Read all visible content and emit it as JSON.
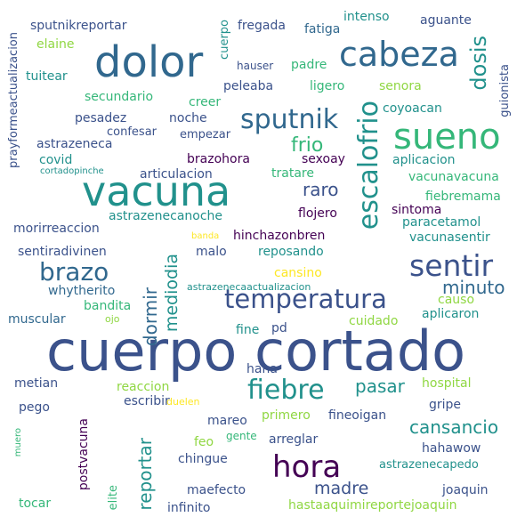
{
  "palette": {
    "background": "#ffffff",
    "dark_purple": "#440154",
    "indigo": "#3b528b",
    "navy": "#31688e",
    "teal": "#21918c",
    "green": "#35b779",
    "lime": "#90d743",
    "yellow": "#fde725"
  },
  "words": [
    {
      "text": "cuerpo cortado"
    },
    {
      "text": "vacuna"
    },
    {
      "text": "dolor"
    },
    {
      "text": "cabeza"
    },
    {
      "text": "sueno"
    },
    {
      "text": "sputnik"
    },
    {
      "text": "escalofrio"
    },
    {
      "text": "temperatura"
    },
    {
      "text": "sentir"
    },
    {
      "text": "hora"
    },
    {
      "text": "fiebre"
    },
    {
      "text": "brazo"
    },
    {
      "text": "dosis"
    },
    {
      "text": "cansancio"
    },
    {
      "text": "mediodia"
    },
    {
      "text": "minuto"
    },
    {
      "text": "dormir"
    },
    {
      "text": "reportar"
    },
    {
      "text": "frio"
    },
    {
      "text": "raro"
    },
    {
      "text": "madre"
    },
    {
      "text": "pasar"
    },
    {
      "text": "sputnikreportar"
    },
    {
      "text": "prayformeactualizacion"
    },
    {
      "text": "elaine"
    },
    {
      "text": "tuitear"
    },
    {
      "text": "secundario"
    },
    {
      "text": "pesadez"
    },
    {
      "text": "confesar"
    },
    {
      "text": "astrazeneca"
    },
    {
      "text": "covid"
    },
    {
      "text": "cortadopinche"
    },
    {
      "text": "morirreaccion"
    },
    {
      "text": "sentiradivinen"
    },
    {
      "text": "whytherito"
    },
    {
      "text": "bandita"
    },
    {
      "text": "muscular"
    },
    {
      "text": "ojo"
    },
    {
      "text": "metian"
    },
    {
      "text": "pego"
    },
    {
      "text": "muero"
    },
    {
      "text": "tocar"
    },
    {
      "text": "elite"
    },
    {
      "text": "postvacuna"
    },
    {
      "text": "fregada"
    },
    {
      "text": "cuerpo"
    },
    {
      "text": "hauser"
    },
    {
      "text": "padre"
    },
    {
      "text": "creer"
    },
    {
      "text": "peleaba"
    },
    {
      "text": "noche"
    },
    {
      "text": "empezar"
    },
    {
      "text": "brazohora"
    },
    {
      "text": "articulacion"
    },
    {
      "text": "astrazenecanoche"
    },
    {
      "text": "malo"
    },
    {
      "text": "banda"
    },
    {
      "text": "astrazenecaactualizacion"
    },
    {
      "text": "fatiga"
    },
    {
      "text": "intenso"
    },
    {
      "text": "aguante"
    },
    {
      "text": "guionista"
    },
    {
      "text": "ligero"
    },
    {
      "text": "senora"
    },
    {
      "text": "coyoacan"
    },
    {
      "text": "sexoay"
    },
    {
      "text": "tratare"
    },
    {
      "text": "aplicacion"
    },
    {
      "text": "vacunavacuna"
    },
    {
      "text": "fiebremama"
    },
    {
      "text": "sintoma"
    },
    {
      "text": "paracetamol"
    },
    {
      "text": "vacunasentir"
    },
    {
      "text": "flojero"
    },
    {
      "text": "hinchazonbren"
    },
    {
      "text": "reposando"
    },
    {
      "text": "cansino"
    },
    {
      "text": "causo"
    },
    {
      "text": "aplicaron"
    },
    {
      "text": "cuidado"
    },
    {
      "text": "fine"
    },
    {
      "text": "pd"
    },
    {
      "text": "haha"
    },
    {
      "text": "reaccion"
    },
    {
      "text": "escribir"
    },
    {
      "text": "duelen"
    },
    {
      "text": "primero"
    },
    {
      "text": "fineoigan"
    },
    {
      "text": "hospital"
    },
    {
      "text": "gripe"
    },
    {
      "text": "mareo"
    },
    {
      "text": "feo"
    },
    {
      "text": "gente"
    },
    {
      "text": "arreglar"
    },
    {
      "text": "chingue"
    },
    {
      "text": "hahawow"
    },
    {
      "text": "astrazenecapedo"
    },
    {
      "text": "maefecto"
    },
    {
      "text": "infinito"
    },
    {
      "text": "joaquin"
    },
    {
      "text": "hastaaquimireportejoaquin"
    }
  ]
}
